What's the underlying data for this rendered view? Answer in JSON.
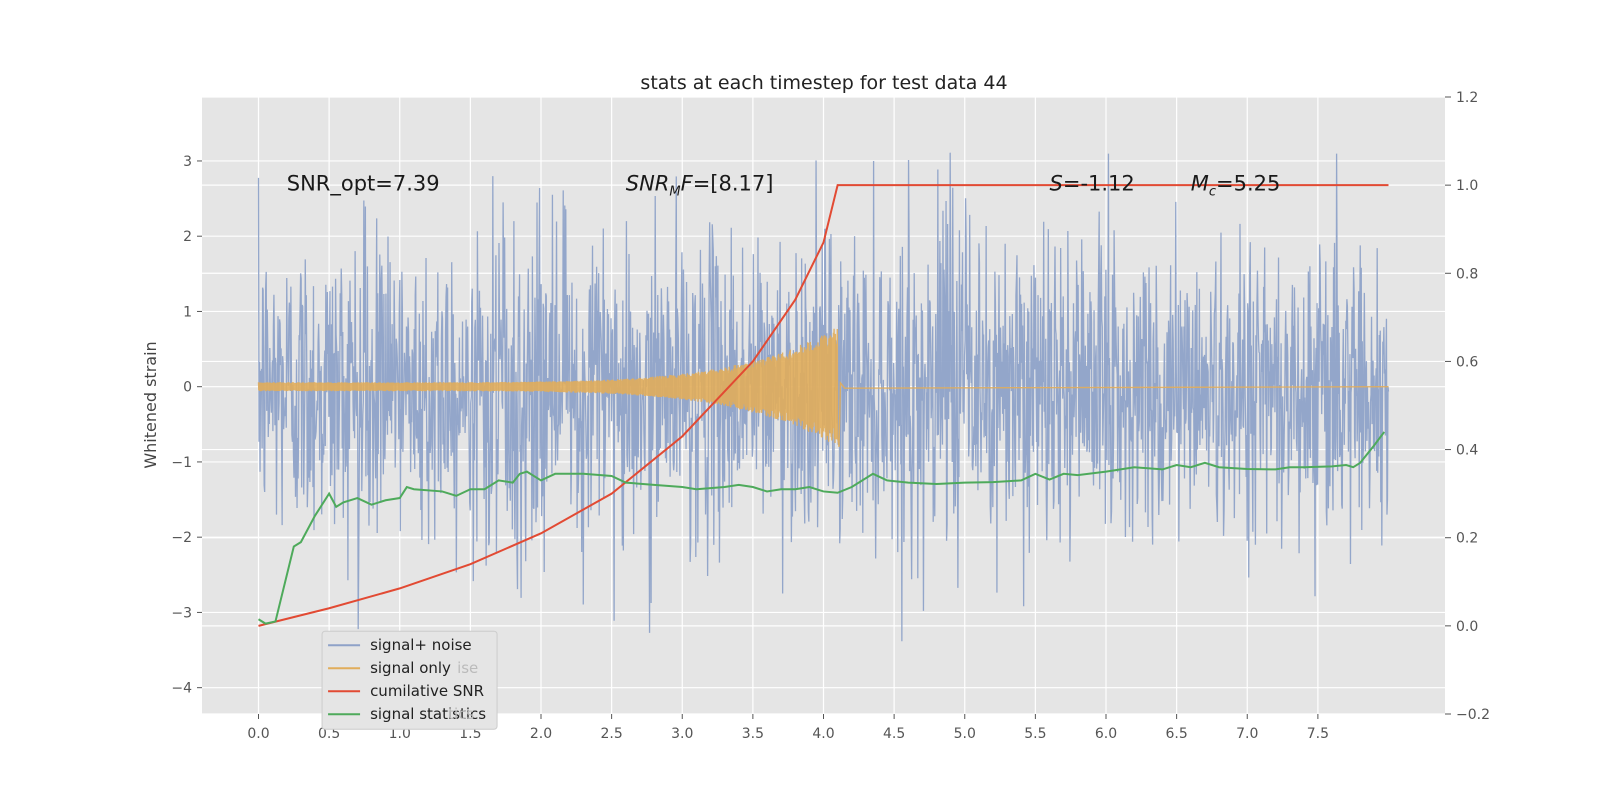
{
  "chart_data": {
    "type": "line",
    "title": "stats at each timestep for test data 44",
    "ylabel": "Whitened strain",
    "xlabel": "",
    "xlim": [
      -0.4,
      8.4
    ],
    "ylim": [
      -4.35,
      3.85
    ],
    "y2lim": [
      -0.2,
      1.2
    ],
    "grid": true,
    "x_ticks": [
      "0.0",
      "0.5",
      "1.0",
      "1.5",
      "2.0",
      "2.5",
      "3.0",
      "3.5",
      "4.0",
      "4.5",
      "5.0",
      "5.5",
      "6.0",
      "6.5",
      "7.0",
      "7.5"
    ],
    "x_tick_values": [
      0.0,
      0.5,
      1.0,
      1.5,
      2.0,
      2.5,
      3.0,
      3.5,
      4.0,
      4.5,
      5.0,
      5.5,
      6.0,
      6.5,
      7.0,
      7.5
    ],
    "y_ticks": [
      "−4",
      "−3",
      "−2",
      "−1",
      "0",
      "1",
      "2",
      "3"
    ],
    "y_tick_values": [
      -4,
      -3,
      -2,
      -1,
      0,
      1,
      2,
      3
    ],
    "y2_ticks": [
      "−0.2",
      "0.0",
      "0.2",
      "0.4",
      "0.6",
      "0.8",
      "1.0",
      "1.2"
    ],
    "y2_tick_values": [
      -0.2,
      0.0,
      0.2,
      0.4,
      0.6,
      0.8,
      1.0,
      1.2
    ],
    "annotations": [
      {
        "text": "SNR_opt=7.39",
        "x": 0.2,
        "y": 2.7
      },
      {
        "text": "SNR_MF=[8.17]",
        "x": 2.6,
        "y": 2.7
      },
      {
        "text": "S=-1.12",
        "x": 5.6,
        "y": 2.7
      },
      {
        "text": "M_c=5.25",
        "x": 6.6,
        "y": 2.7
      }
    ],
    "legend": {
      "placement": "lower-left",
      "entries": [
        "signal+ noise",
        "signal only",
        "cumilative SNR",
        "signal statistics"
      ],
      "ghost_text": [
        "ise",
        "tics"
      ]
    },
    "series": [
      {
        "name": "signal+ noise",
        "axis": "left",
        "color": "#8ea2c8",
        "kind": "noise",
        "t_range": [
          0.0,
          8.0
        ],
        "n_samples": 2200,
        "sigma": 1.0,
        "approx_max": 3.5,
        "approx_min": -3.4
      },
      {
        "name": "signal only",
        "axis": "left",
        "color": "#e1ad5b",
        "kind": "chirp",
        "t_range": [
          0.0,
          4.1
        ],
        "amplitude_start": 0.06,
        "amplitude_peak": 0.8,
        "post_merger_until": 8.0
      },
      {
        "name": "cumilative SNR",
        "axis": "right",
        "color": "#e24a33",
        "x": [
          0.0,
          0.5,
          1.0,
          1.5,
          2.0,
          2.5,
          3.0,
          3.5,
          3.8,
          4.0,
          4.1,
          8.0
        ],
        "y": [
          0.0,
          0.04,
          0.085,
          0.14,
          0.21,
          0.3,
          0.43,
          0.6,
          0.74,
          0.87,
          1.0,
          1.0
        ]
      },
      {
        "name": "signal statistics",
        "axis": "right",
        "color": "#4eaa5b",
        "x": [
          0.0,
          0.05,
          0.12,
          0.25,
          0.3,
          0.4,
          0.5,
          0.55,
          0.6,
          0.7,
          0.8,
          0.9,
          1.0,
          1.05,
          1.1,
          1.3,
          1.4,
          1.5,
          1.6,
          1.7,
          1.8,
          1.85,
          1.9,
          2.0,
          2.1,
          2.3,
          2.5,
          2.6,
          2.8,
          3.0,
          3.1,
          3.3,
          3.4,
          3.5,
          3.6,
          3.7,
          3.8,
          3.9,
          4.0,
          4.1,
          4.2,
          4.35,
          4.45,
          4.6,
          4.8,
          5.0,
          5.2,
          5.4,
          5.5,
          5.6,
          5.7,
          5.8,
          6.0,
          6.2,
          6.4,
          6.5,
          6.6,
          6.7,
          6.8,
          7.0,
          7.2,
          7.3,
          7.4,
          7.6,
          7.7,
          7.75,
          7.8,
          7.9,
          7.97
        ],
        "y": [
          0.015,
          0.005,
          0.01,
          0.18,
          0.19,
          0.25,
          0.3,
          0.27,
          0.28,
          0.29,
          0.275,
          0.285,
          0.29,
          0.315,
          0.31,
          0.305,
          0.295,
          0.31,
          0.31,
          0.33,
          0.325,
          0.345,
          0.35,
          0.33,
          0.345,
          0.345,
          0.34,
          0.325,
          0.32,
          0.315,
          0.31,
          0.315,
          0.32,
          0.315,
          0.305,
          0.31,
          0.31,
          0.315,
          0.305,
          0.302,
          0.315,
          0.345,
          0.33,
          0.325,
          0.322,
          0.325,
          0.326,
          0.33,
          0.345,
          0.332,
          0.345,
          0.342,
          0.35,
          0.36,
          0.355,
          0.365,
          0.36,
          0.37,
          0.36,
          0.356,
          0.355,
          0.36,
          0.36,
          0.362,
          0.365,
          0.36,
          0.37,
          0.41,
          0.44
        ]
      }
    ]
  }
}
